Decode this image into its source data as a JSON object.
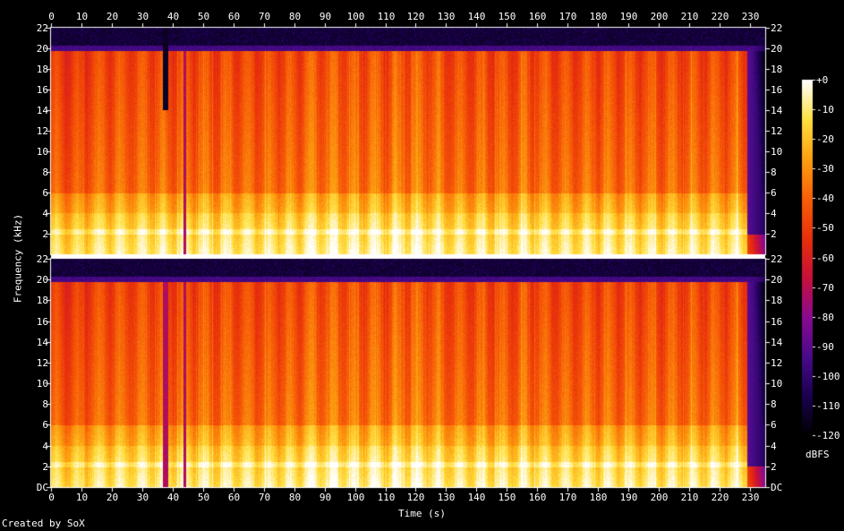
{
  "chart_data": {
    "type": "heatmap",
    "description_channels": 2,
    "xlabel": "Time (s)",
    "ylabel": "Frequency (kHz)",
    "x_ticks": [
      0,
      10,
      20,
      30,
      40,
      50,
      60,
      70,
      80,
      90,
      100,
      110,
      120,
      130,
      140,
      150,
      160,
      170,
      180,
      190,
      200,
      210,
      220,
      230
    ],
    "xlim": [
      0,
      235
    ],
    "y_ticks_top": [
      "2",
      "4",
      "6",
      "8",
      "10",
      "12",
      "14",
      "16",
      "18",
      "20",
      "22"
    ],
    "y_ticks_bottom": [
      "DC",
      "2",
      "4",
      "6",
      "8",
      "10",
      "12",
      "14",
      "16",
      "18",
      "20",
      "22"
    ],
    "ylim_khz": [
      0,
      22
    ],
    "colorbar": {
      "label": "dBFS",
      "ticks": [
        "+0",
        "-10",
        "-20",
        "-30",
        "-40",
        "-50",
        "-60",
        "-70",
        "-80",
        "-90",
        "-100",
        "-110",
        "-120"
      ],
      "range": [
        -120,
        0
      ],
      "colors": [
        "#000000",
        "#1a0050",
        "#4a0a8a",
        "#8a0a90",
        "#c8103a",
        "#e8300a",
        "#f86008",
        "#fca010",
        "#ffe040",
        "#ffffff"
      ]
    },
    "cutoff_khz": 20,
    "dropouts_s": [
      37,
      38,
      44
    ],
    "credit": "Created by SoX"
  }
}
